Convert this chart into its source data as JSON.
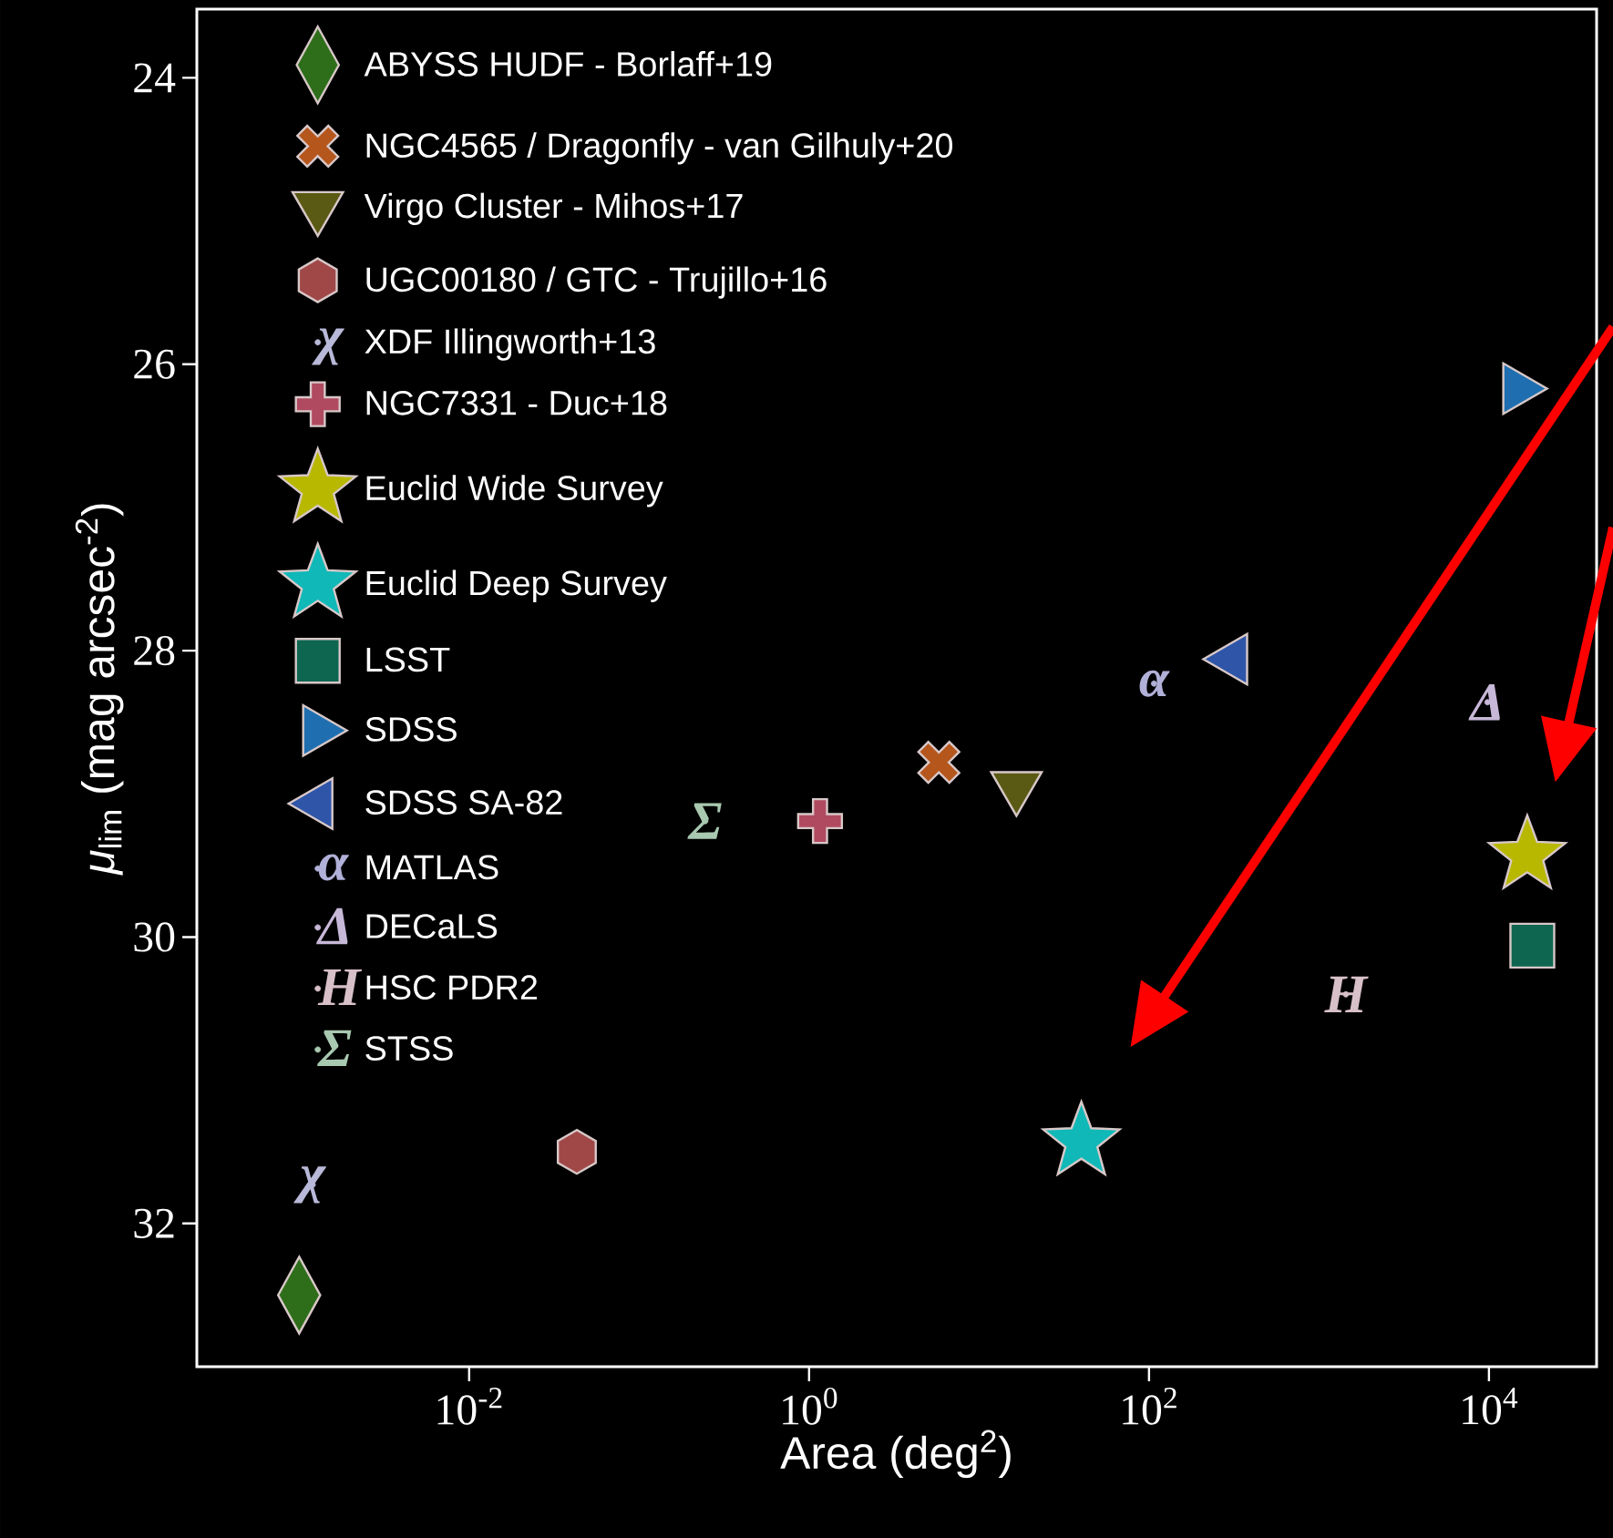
{
  "chart_data": {
    "type": "scatter",
    "xlabel": "Area (deg$^{2}$)",
    "ylabel": "*μ*$_{lim}$ (mag arcsec$^{-2}$)",
    "log": "x",
    "xlim": [
      0.00025,
      43000
    ],
    "ylim": [
      33.0,
      23.52
    ],
    "xticks": [
      {
        "value": 0.01,
        "label": "10$^{-2}$"
      },
      {
        "value": 1,
        "label": "10$^{0}$"
      },
      {
        "value": 100,
        "label": "10$^{2}$"
      },
      {
        "value": 10000,
        "label": "10$^{4}$"
      }
    ],
    "yticks": [
      24,
      26,
      28,
      30,
      32
    ],
    "legend": "top left",
    "annotations": [
      {
        "text": "χ",
        "x": 0.0012,
        "y": 31.73
      },
      {
        "text": "α",
        "x": 107,
        "y": 28.23
      },
      {
        "text": "Δ",
        "x": 9800,
        "y": 28.36
      },
      {
        "text": "H",
        "x": 1440,
        "y": 30.4
      },
      {
        "text": "Σ",
        "x": 0.245,
        "y": 29.19
      }
    ],
    "series": [
      {
        "name": "ABYSS HUDF - Borlaff+19",
        "color": "#2e6e1a",
        "marker": "diamond",
        "x": [
          0.001
        ],
        "values": [
          32.5
        ]
      },
      {
        "name": "NGC4565 / Dragonfly - van Gilhuly+20",
        "color": "#b5561c",
        "marker": "cross",
        "x": [
          5.8
        ],
        "values": [
          28.78
        ]
      },
      {
        "name": "Virgo Cluster - Mihos+17",
        "color": "#5a5a14",
        "marker": "triangle_down",
        "x": [
          16.6
        ],
        "values": [
          28.95
        ]
      },
      {
        "name": "UGC00180 / GTC - Trujillo+16",
        "color": "#a04848",
        "x": [
          0.043
        ],
        "values": [
          31.5
        ]
      },
      {
        "name": "XDF Illingworth+13",
        "color": "#b8b8d8",
        "x": [
          0.0012
        ],
        "values": [
          31.73
        ]
      },
      {
        "name": "NGC7331 - Duc+18",
        "color": "#b04a60",
        "marker": "plus",
        "x": [
          1.16
        ],
        "values": [
          29.19
        ]
      },
      {
        "name": "Euclid Wide Survey",
        "color": "#b8b800",
        "marker": "star",
        "x": [
          16800
        ],
        "values": [
          29.43
        ]
      },
      {
        "name": "Euclid Deep Survey",
        "color": "#10b8b8",
        "marker": "star",
        "x": [
          40
        ],
        "values": [
          31.43
        ]
      },
      {
        "name": "LSST",
        "color": "#0e6650",
        "marker": "square",
        "x": [
          18000
        ],
        "values": [
          30.06
        ]
      },
      {
        "name": "SDSS",
        "color": "#1f6fb0",
        "marker": "triangle_right",
        "x": [
          14800
        ],
        "values": [
          26.17
        ]
      },
      {
        "name": "SDSS SA-82",
        "color": "#2e55a8",
        "marker": "triangle_left",
        "x": [
          310
        ],
        "values": [
          28.06
        ]
      },
      {
        "name": "MATLAS",
        "color": "#b0b0d8",
        "x": [
          107
        ],
        "values": [
          28.23
        ]
      },
      {
        "name": "DECaLS",
        "color": "#c8b8d8",
        "x": [
          9800
        ],
        "values": [
          28.36
        ]
      },
      {
        "name": "HSC PDR2",
        "color": "#d8c0c8",
        "x": [
          1440
        ],
        "values": [
          30.4
        ]
      },
      {
        "name": "STSS",
        "color": "#a8c8b0",
        "x": [
          0.245
        ],
        "values": [
          29.19
        ]
      }
    ]
  }
}
